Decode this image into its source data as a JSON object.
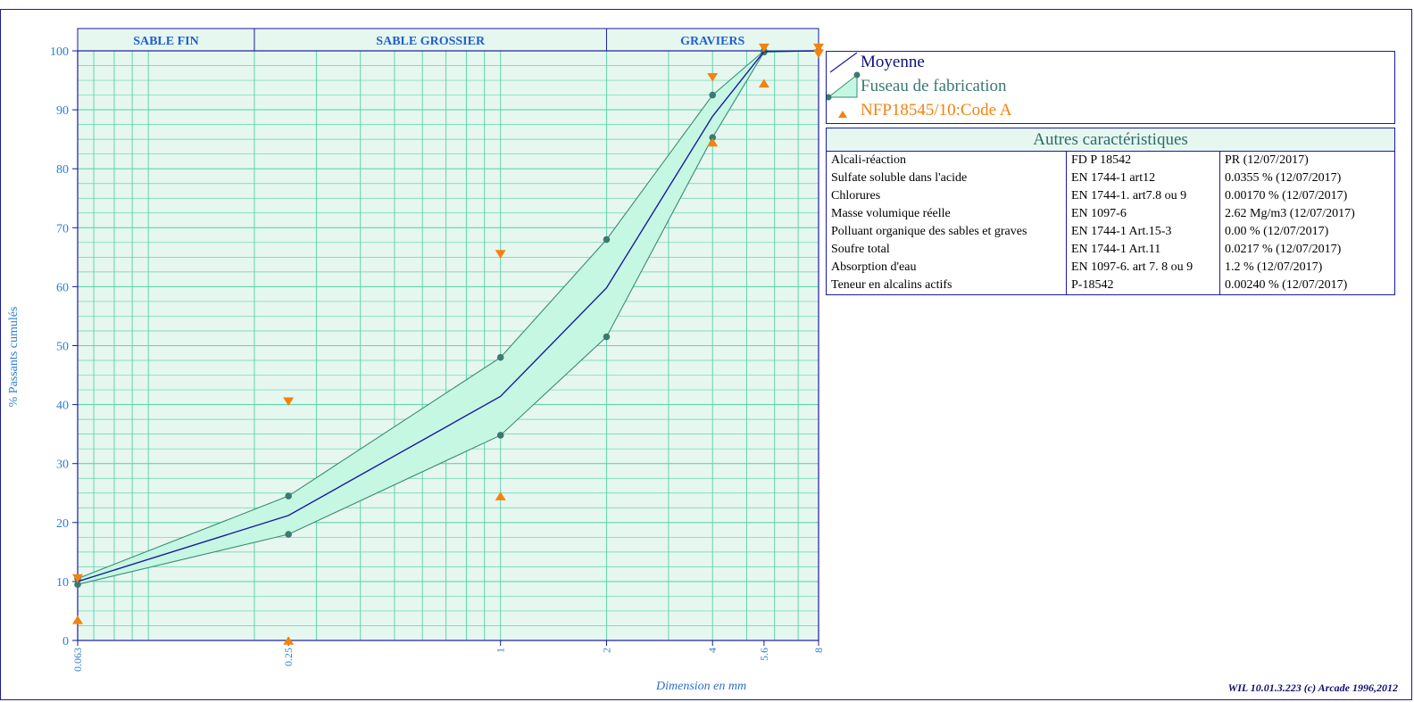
{
  "chart_data": {
    "type": "line",
    "ylabel": "% Passants cumulés",
    "xlabel": "Dimension en mm",
    "xscale": "log",
    "ylim": [
      0,
      100
    ],
    "y_ticks": [
      "0",
      "10",
      "20",
      "30",
      "40",
      "50",
      "60",
      "70",
      "80",
      "90",
      "100"
    ],
    "x_ticks": [
      {
        "label": "0.063",
        "value": 0.063
      },
      {
        "label": "0.25",
        "value": 0.25
      },
      {
        "label": "1",
        "value": 1
      },
      {
        "label": "2",
        "value": 2
      },
      {
        "label": "4",
        "value": 4
      },
      {
        "label": "5.6",
        "value": 5.6
      },
      {
        "label": "8",
        "value": 8
      }
    ],
    "zones": [
      {
        "label": "SABLE FIN",
        "from": 0.063,
        "to": 0.2
      },
      {
        "label": "SABLE GROSSIER",
        "from": 0.2,
        "to": 2
      },
      {
        "label": "GRAVIERS",
        "from": 2,
        "to": 8
      }
    ],
    "series": [
      {
        "name": "Moyenne",
        "color": "#1a1aa0",
        "x": [
          0.063,
          0.25,
          1,
          2,
          4,
          5.6,
          8
        ],
        "y": [
          10.0,
          21.2,
          41.4,
          59.8,
          88.9,
          99.9,
          100
        ]
      },
      {
        "name": "Fuseau de fabrication",
        "color": "#3a8a78",
        "fill": "#c6f7e2",
        "x": [
          0.063,
          0.25,
          1,
          2,
          4,
          5.6,
          8
        ],
        "upper": [
          10.5,
          24.5,
          48.0,
          68.0,
          92.5,
          100,
          100
        ],
        "lower": [
          9.5,
          18.0,
          34.8,
          51.5,
          85.3,
          99.8,
          100
        ]
      },
      {
        "name": "NFP18545/10:Code A",
        "color": "#f5820e",
        "markers": [
          {
            "x": 0.063,
            "y": 10.5,
            "dir": "down"
          },
          {
            "x": 0.063,
            "y": 3.5,
            "dir": "up"
          },
          {
            "x": 0.25,
            "y": 40.5,
            "dir": "down"
          },
          {
            "x": 0.25,
            "y": 0,
            "dir": "up"
          },
          {
            "x": 1,
            "y": 65.5,
            "dir": "down"
          },
          {
            "x": 1,
            "y": 24.5,
            "dir": "up"
          },
          {
            "x": 4,
            "y": 95.5,
            "dir": "down"
          },
          {
            "x": 4,
            "y": 84.5,
            "dir": "up"
          },
          {
            "x": 5.6,
            "y": 100.5,
            "dir": "down"
          },
          {
            "x": 5.6,
            "y": 94.5,
            "dir": "up"
          },
          {
            "x": 8,
            "y": 100.5,
            "dir": "down"
          },
          {
            "x": 8,
            "y": 99.5,
            "dir": "down"
          }
        ]
      }
    ],
    "grid": true
  },
  "legend": {
    "moyenne": "Moyenne",
    "fuseau": "Fuseau de fabrication",
    "code": "NFP18545/10:Code A"
  },
  "autres": {
    "title": "Autres caractéristiques",
    "rows": [
      [
        "Alcali-réaction",
        "FD P 18542",
        "PR  (12/07/2017)"
      ],
      [
        "Sulfate soluble dans l'acide",
        "EN 1744-1 art12",
        "0.0355 %  (12/07/2017)"
      ],
      [
        "Chlorures",
        "EN 1744-1. art7.8 ou 9",
        "0.00170 %  (12/07/2017)"
      ],
      [
        "Masse volumique réelle",
        "EN 1097-6",
        "2.62 Mg/m3  (12/07/2017)"
      ],
      [
        "Polluant organique des sables et graves",
        "EN 1744-1 Art.15-3",
        "0.00 %  (12/07/2017)"
      ],
      [
        "Soufre total",
        "EN 1744-1 Art.11",
        "0.0217 %  (12/07/2017)"
      ],
      [
        "Absorption d'eau",
        "EN 1097-6. art 7. 8 ou 9",
        "1.2 %  (12/07/2017)"
      ],
      [
        "Teneur en alcalins actifs",
        "P-18542",
        "0.00240 %  (12/07/2017)"
      ]
    ]
  },
  "credit": "WIL 10.01.3.223 (c) Arcade 1996,2012",
  "colors": {
    "frame": "#1a1a9c",
    "plot_bg": "#e6f7ef",
    "grid": "#5fd6b0",
    "axis_text": "#2b7fd1",
    "zone_text": "#1f5fd0"
  }
}
